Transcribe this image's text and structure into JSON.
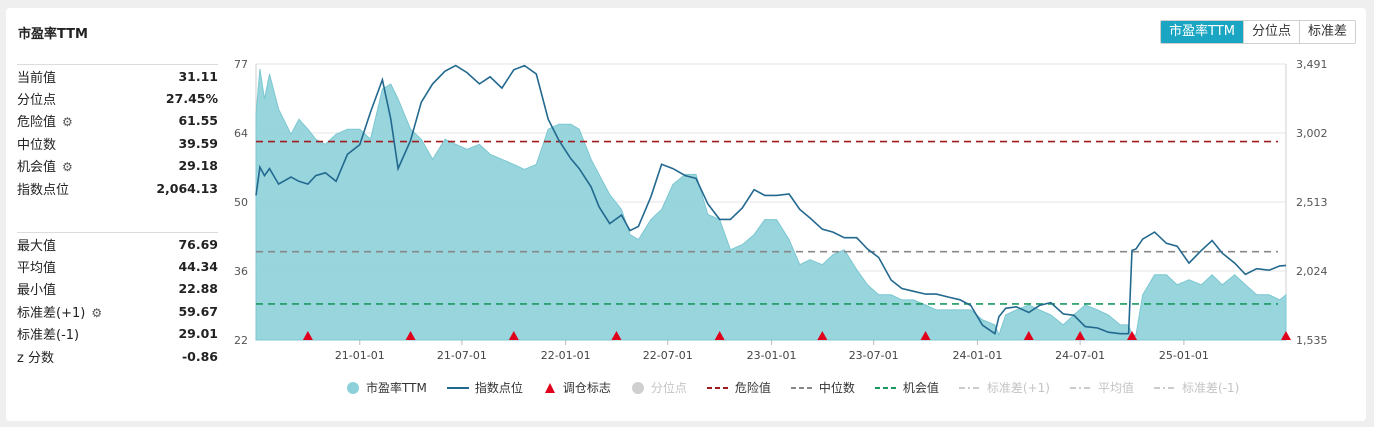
{
  "header": {
    "title": "市盈率TTM",
    "tabs": [
      "市盈率TTM",
      "分位点",
      "标准差"
    ],
    "active_tab": 0
  },
  "stats_top": [
    {
      "label": "当前值",
      "value": "31.11",
      "gear": false
    },
    {
      "label": "分位点",
      "value": "27.45%",
      "gear": false
    },
    {
      "label": "危险值",
      "value": "61.55",
      "gear": true
    },
    {
      "label": "中位数",
      "value": "39.59",
      "gear": false
    },
    {
      "label": "机会值",
      "value": "29.18",
      "gear": true
    },
    {
      "label": "指数点位",
      "value": "2,064.13",
      "gear": false
    }
  ],
  "stats_bottom": [
    {
      "label": "最大值",
      "value": "76.69",
      "gear": false
    },
    {
      "label": "平均值",
      "value": "44.34",
      "gear": false
    },
    {
      "label": "最小值",
      "value": "22.88",
      "gear": false
    },
    {
      "label": "标准差(+1)",
      "value": "59.67",
      "gear": true
    },
    {
      "label": "标准差(-1)",
      "value": "29.01",
      "gear": false
    },
    {
      "label": "z 分数",
      "value": "-0.86",
      "gear": false
    }
  ],
  "legend": [
    {
      "label": "市盈率TTM",
      "shape": "circle",
      "color": "#8dd0d9",
      "active": true
    },
    {
      "label": "指数点位",
      "shape": "line",
      "color": "#23698f",
      "active": true
    },
    {
      "label": "调仓标志",
      "shape": "triangle",
      "color": "#e0001b",
      "active": true
    },
    {
      "label": "分位点",
      "shape": "circle",
      "color": "#cfcfcf",
      "active": false
    },
    {
      "label": "危险值",
      "shape": "dash",
      "color": "#a11d1d",
      "active": true
    },
    {
      "label": "中位数",
      "shape": "dash",
      "color": "#888888",
      "active": true
    },
    {
      "label": "机会值",
      "shape": "dash",
      "color": "#1b9a5e",
      "active": true
    },
    {
      "label": "标准差(+1)",
      "shape": "dashdot",
      "color": "#cccccc",
      "active": false
    },
    {
      "label": "平均值",
      "shape": "dashdot",
      "color": "#cccccc",
      "active": false
    },
    {
      "label": "标准差(-1)",
      "shape": "dashdot",
      "color": "#cccccc",
      "active": false
    }
  ],
  "chart_data": {
    "type": "area",
    "x_ticks": [
      "21-01-01",
      "21-07-01",
      "22-01-01",
      "22-07-01",
      "23-01-01",
      "23-07-01",
      "24-01-01",
      "24-07-01",
      "25-01-01"
    ],
    "y_left_ticks": [
      "77",
      "64",
      "50",
      "36",
      "22"
    ],
    "y_left_range": [
      22,
      77
    ],
    "y_right_ticks": [
      "3,491",
      "3,002",
      "2,513",
      "2,024",
      "1,535"
    ],
    "y_right_range": [
      1535,
      3491
    ],
    "x_range": [
      "2020-07-01",
      "2025-07-01"
    ],
    "reference_lines": {
      "danger": 61.55,
      "median": 39.59,
      "opportunity": 29.18
    },
    "rebalance_markers": [
      "2020-10-01",
      "2021-04-01",
      "2021-10-01",
      "2022-04-01",
      "2022-10-01",
      "2023-04-01",
      "2023-10-01",
      "2024-04-01",
      "2024-07-01",
      "2024-10-01",
      "2025-07-01"
    ],
    "series": [
      {
        "name": "市盈率TTM",
        "axis": "left",
        "color": "#8dd0d9",
        "x": [
          "2020-07-01",
          "2020-07-08",
          "2020-07-16",
          "2020-07-25",
          "2020-08-10",
          "2020-09-01",
          "2020-09-15",
          "2020-10-01",
          "2020-10-15",
          "2020-11-01",
          "2020-11-20",
          "2020-12-10",
          "2021-01-01",
          "2021-01-20",
          "2021-02-10",
          "2021-02-25",
          "2021-03-10",
          "2021-04-01",
          "2021-04-20",
          "2021-05-10",
          "2021-06-01",
          "2021-06-20",
          "2021-07-10",
          "2021-08-01",
          "2021-08-20",
          "2021-09-10",
          "2021-10-01",
          "2021-10-20",
          "2021-11-10",
          "2021-12-01",
          "2021-12-20",
          "2022-01-10",
          "2022-01-25",
          "2022-02-15",
          "2022-03-01",
          "2022-03-20",
          "2022-04-10",
          "2022-04-25",
          "2022-05-10",
          "2022-06-01",
          "2022-06-20",
          "2022-07-10",
          "2022-08-01",
          "2022-08-20",
          "2022-09-10",
          "2022-10-01",
          "2022-10-20",
          "2022-11-10",
          "2022-12-01",
          "2022-12-20",
          "2023-01-10",
          "2023-02-01",
          "2023-02-20",
          "2023-03-10",
          "2023-04-01",
          "2023-04-20",
          "2023-05-10",
          "2023-06-01",
          "2023-06-20",
          "2023-07-10",
          "2023-08-01",
          "2023-08-20",
          "2023-09-10",
          "2023-10-01",
          "2023-10-20",
          "2023-11-10",
          "2023-12-01",
          "2023-12-20",
          "2024-01-10",
          "2024-02-01",
          "2024-02-08",
          "2024-02-20",
          "2024-03-10",
          "2024-04-01",
          "2024-04-20",
          "2024-05-10",
          "2024-06-01",
          "2024-06-20",
          "2024-07-10",
          "2024-08-01",
          "2024-08-20",
          "2024-09-10",
          "2024-09-25",
          "2024-10-01",
          "2024-10-08",
          "2024-10-20",
          "2024-11-10",
          "2024-12-01",
          "2024-12-20",
          "2025-01-10",
          "2025-02-01",
          "2025-02-20",
          "2025-03-10",
          "2025-04-01",
          "2025-04-20",
          "2025-05-10",
          "2025-06-01",
          "2025-06-20",
          "2025-07-01"
        ],
        "values": [
          67,
          76,
          70,
          75,
          68,
          63,
          66,
          64,
          62,
          61,
          63,
          64,
          64,
          62,
          72,
          73,
          70,
          64,
          62,
          58,
          62,
          61,
          60,
          61,
          59,
          58,
          57,
          56,
          57,
          64,
          65,
          65,
          64,
          58,
          55,
          51,
          48,
          43,
          42,
          46,
          48,
          53,
          55,
          55,
          47,
          46,
          40,
          41,
          43,
          46,
          46,
          42,
          37,
          38,
          37,
          39,
          40,
          36,
          33,
          31,
          31,
          30,
          30,
          29,
          28,
          28,
          28,
          28,
          26,
          25,
          23,
          27,
          28,
          29,
          28,
          27,
          25,
          27,
          29,
          28,
          27,
          25,
          25,
          23,
          23,
          31,
          35,
          35,
          33,
          34,
          33,
          35,
          33,
          35,
          33,
          31,
          31,
          30,
          31
        ]
      },
      {
        "name": "指数点位",
        "axis": "right",
        "color": "#23698f",
        "x": [
          "2020-07-01",
          "2020-07-08",
          "2020-07-16",
          "2020-07-25",
          "2020-08-10",
          "2020-09-01",
          "2020-09-15",
          "2020-10-01",
          "2020-10-15",
          "2020-11-01",
          "2020-11-20",
          "2020-12-10",
          "2021-01-01",
          "2021-01-20",
          "2021-02-10",
          "2021-02-25",
          "2021-03-10",
          "2021-04-01",
          "2021-04-20",
          "2021-05-10",
          "2021-06-01",
          "2021-06-20",
          "2021-07-10",
          "2021-08-01",
          "2021-08-20",
          "2021-09-10",
          "2021-10-01",
          "2021-10-20",
          "2021-11-10",
          "2021-12-01",
          "2021-12-20",
          "2022-01-10",
          "2022-01-25",
          "2022-02-15",
          "2022-03-01",
          "2022-03-20",
          "2022-04-10",
          "2022-04-25",
          "2022-05-10",
          "2022-06-01",
          "2022-06-20",
          "2022-07-10",
          "2022-08-01",
          "2022-08-20",
          "2022-09-10",
          "2022-10-01",
          "2022-10-20",
          "2022-11-10",
          "2022-12-01",
          "2022-12-20",
          "2023-01-10",
          "2023-02-01",
          "2023-02-20",
          "2023-03-10",
          "2023-04-01",
          "2023-04-20",
          "2023-05-10",
          "2023-06-01",
          "2023-06-20",
          "2023-07-10",
          "2023-08-01",
          "2023-08-20",
          "2023-09-10",
          "2023-10-01",
          "2023-10-20",
          "2023-11-10",
          "2023-12-01",
          "2023-12-20",
          "2024-01-10",
          "2024-02-01",
          "2024-02-08",
          "2024-02-20",
          "2024-03-10",
          "2024-04-01",
          "2024-04-20",
          "2024-05-10",
          "2024-06-01",
          "2024-06-20",
          "2024-07-10",
          "2024-08-01",
          "2024-08-20",
          "2024-09-10",
          "2024-09-25",
          "2024-10-01",
          "2024-10-08",
          "2024-10-20",
          "2024-11-10",
          "2024-12-01",
          "2024-12-20",
          "2025-01-10",
          "2025-02-01",
          "2025-02-20",
          "2025-03-10",
          "2025-04-01",
          "2025-04-20",
          "2025-05-10",
          "2025-06-01",
          "2025-06-20",
          "2025-07-01"
        ],
        "values": [
          2560,
          2760,
          2700,
          2750,
          2640,
          2690,
          2660,
          2640,
          2700,
          2720,
          2660,
          2850,
          2920,
          3150,
          3380,
          3100,
          2750,
          2950,
          3220,
          3350,
          3440,
          3480,
          3430,
          3350,
          3400,
          3320,
          3450,
          3480,
          3420,
          3100,
          2950,
          2820,
          2750,
          2620,
          2480,
          2360,
          2420,
          2310,
          2340,
          2550,
          2780,
          2750,
          2700,
          2680,
          2500,
          2390,
          2390,
          2470,
          2600,
          2560,
          2560,
          2570,
          2460,
          2400,
          2320,
          2300,
          2260,
          2260,
          2180,
          2120,
          1960,
          1900,
          1880,
          1860,
          1860,
          1840,
          1820,
          1780,
          1640,
          1580,
          1700,
          1760,
          1770,
          1730,
          1780,
          1800,
          1720,
          1710,
          1630,
          1620,
          1590,
          1580,
          1580,
          2170,
          2180,
          2250,
          2300,
          2220,
          2200,
          2080,
          2170,
          2240,
          2150,
          2080,
          2000,
          2040,
          2030,
          2060,
          2064
        ]
      }
    ]
  }
}
